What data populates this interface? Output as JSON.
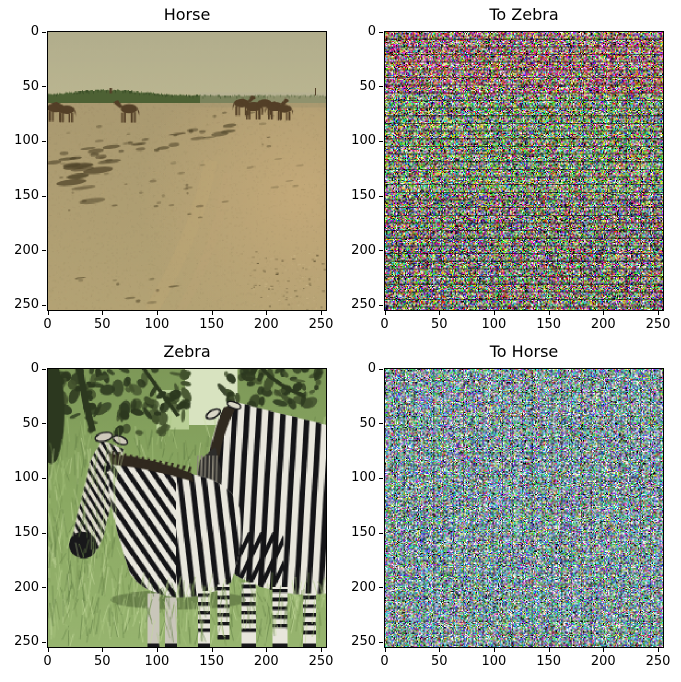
{
  "figure": {
    "background": "#ffffff"
  },
  "subplots": [
    {
      "id": "horse",
      "title": "Horse",
      "row": 0,
      "col": 0,
      "x_ticks": [
        0,
        50,
        100,
        150,
        200,
        250
      ],
      "y_ticks": [
        0,
        50,
        100,
        150,
        200,
        250
      ]
    },
    {
      "id": "to-zebra",
      "title": "To Zebra",
      "row": 0,
      "col": 1,
      "x_ticks": [
        0,
        50,
        100,
        150,
        200,
        250
      ],
      "y_ticks": [
        0,
        50,
        100,
        150,
        200,
        250
      ]
    },
    {
      "id": "zebra",
      "title": "Zebra",
      "row": 1,
      "col": 0,
      "x_ticks": [
        0,
        50,
        100,
        150,
        200,
        250
      ],
      "y_ticks": [
        0,
        50,
        100,
        150,
        200,
        250
      ]
    },
    {
      "id": "to-horse",
      "title": "To Horse",
      "row": 1,
      "col": 1,
      "x_ticks": [
        0,
        50,
        100,
        150,
        200,
        250
      ],
      "y_ticks": [
        0,
        50,
        100,
        150,
        200,
        250
      ]
    }
  ],
  "chart_data": [
    {
      "type": "heatmap",
      "subtype": "rgb-image",
      "title": "Horse",
      "x_range": [
        0,
        255
      ],
      "y_range": [
        0,
        255
      ],
      "x_ticks": [
        0,
        50,
        100,
        150,
        200,
        250
      ],
      "y_ticks": [
        0,
        50,
        100,
        150,
        200,
        250
      ],
      "description": "256x256 photo: brown horses on a sandy beach, khaki hazy sky, low green dune strip at horizon, dark seaweed debris streaks on sand"
    },
    {
      "type": "heatmap",
      "subtype": "rgb-noise",
      "title": "To Zebra",
      "x_range": [
        0,
        255
      ],
      "y_range": [
        0,
        255
      ],
      "x_ticks": [
        0,
        50,
        100,
        150,
        200,
        250
      ],
      "y_ticks": [
        0,
        50,
        100,
        150,
        200,
        250
      ],
      "description": "256x256 saturated RGB adversarial noise, red/magenta-biased banding in the top rows, green-dominant elsewhere, periodic dark horizontal rows"
    },
    {
      "type": "heatmap",
      "subtype": "rgb-image",
      "title": "Zebra",
      "x_range": [
        0,
        255
      ],
      "y_range": [
        0,
        255
      ],
      "x_ticks": [
        0,
        50,
        100,
        150,
        200,
        250
      ],
      "y_ticks": [
        0,
        50,
        100,
        150,
        200,
        250
      ],
      "description": "256x256 photo: two zebras standing in tall green grass, dark trees and branches across the top, one head angled down-left"
    },
    {
      "type": "heatmap",
      "subtype": "rgb-noise",
      "title": "To Horse",
      "x_range": [
        0,
        255
      ],
      "y_range": [
        0,
        255
      ],
      "x_ticks": [
        0,
        50,
        100,
        150,
        200,
        250
      ],
      "y_ticks": [
        0,
        50,
        100,
        150,
        200,
        250
      ],
      "description": "256x256 lighter cyan/green-biased RGB adversarial noise with faint vertical periodic structure"
    }
  ],
  "palette": {
    "horse_photo": {
      "sky_top": "#b1ad8c",
      "sky_bottom": "#bab590",
      "dune_green": "#4d6134",
      "dune_green_dark": "#3c4e28",
      "sand": "#a99970",
      "sand_light": "#c2a878",
      "sand_dark": "#8d7f5c",
      "debris": "#4f4429",
      "horse": "#533f27",
      "haze": "#b6b194"
    },
    "zebra_photo": {
      "grass": "#8aa862",
      "grass_light": "#c3d89b",
      "grass_dark": "#5f7c44",
      "tree_dark": "#2c381f",
      "tree_mid": "#42512d",
      "sky_gap": "#d8e3c0",
      "zebra_white": "#e8e6dc",
      "stripe": "#141417",
      "mane": "#30291f",
      "muzzle": "#18181a",
      "leg_gray": "#c9c6ba"
    },
    "noise_to_zebra": {
      "seed": 12,
      "p_red": 0.42,
      "p_green": 0.52,
      "p_blue": 0.34,
      "checker": 0.22,
      "red_top_rows": 58,
      "green_mid": true,
      "row_period": 7,
      "row_dim": 0.55,
      "col_period": 13,
      "col_dim": 0.8,
      "white": 0.05,
      "black": 0.07,
      "lift": 0
    },
    "noise_to_horse": {
      "seed": 77,
      "p_red": 0.3,
      "p_green": 0.6,
      "p_blue": 0.52,
      "checker": 0.12,
      "red_top_rows": 0,
      "green_mid": false,
      "row_period": 11,
      "row_dim": 0.85,
      "col_period": 9,
      "col_dim": 0.78,
      "white": 0.12,
      "black": 0.05,
      "lift": 35
    }
  }
}
